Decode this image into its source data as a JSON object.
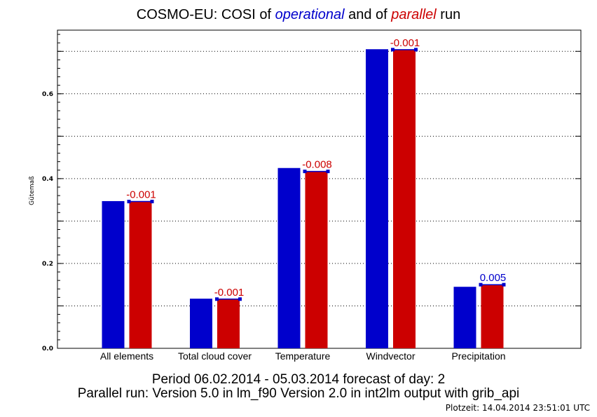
{
  "title": {
    "prefix": "COSMO-EU: COSI  of ",
    "operational": "operational",
    "middle": " and of ",
    "parallel": "parallel",
    "suffix": " run"
  },
  "footer": {
    "line1": "Period 06.02.2014 - 05.03.2014 forecast of day: 2",
    "line2": "Parallel run: Version 5.0 in lm_f90 Version 2.0 in int2lm output with grib_api",
    "plotzeit": "Plotzeit: 14.04.2014 23:51:01 UTC"
  },
  "colors": {
    "operational": "#0000cc",
    "parallel": "#cc0000",
    "positive_diff": "#0000cc",
    "negative_diff": "#cc0000"
  },
  "chart_data": {
    "type": "bar",
    "ylabel": "Gütemaß",
    "ylim": [
      0,
      0.75
    ],
    "yticks": [
      0.0,
      0.2,
      0.4,
      0.6
    ],
    "yticklabels": [
      "0.0",
      "0.2",
      "0.4",
      "0.6"
    ],
    "grid": true,
    "categories": [
      "All elements",
      "Total cloud cover",
      "Temperature",
      "Windvector",
      "Precipitation"
    ],
    "series": [
      {
        "name": "operational",
        "values": [
          0.347,
          0.117,
          0.425,
          0.705,
          0.145
        ]
      },
      {
        "name": "parallel",
        "values": [
          0.346,
          0.116,
          0.417,
          0.704,
          0.15
        ]
      }
    ],
    "differences": [
      "-0.001",
      "-0.001",
      "-0.008",
      "-0.001",
      "0.005"
    ]
  }
}
